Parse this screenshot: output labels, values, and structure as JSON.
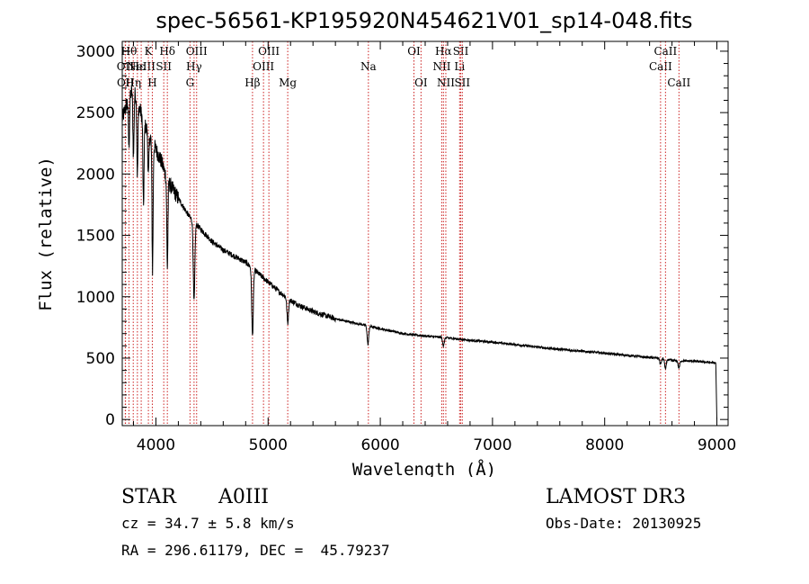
{
  "chart_data": {
    "type": "line",
    "title": "spec-56561-KP195920N454621V01_sp14-048.fits",
    "xlabel": "Wavelength (Å)",
    "ylabel": "Flux (relative)",
    "xlim": [
      3700,
      9100
    ],
    "ylim": [
      -50,
      3080
    ],
    "xticks": [
      4000,
      5000,
      6000,
      7000,
      8000,
      9000
    ],
    "xtick_labels": [
      "4000",
      "5000",
      "6000",
      "7000",
      "8000",
      "9000"
    ],
    "yticks": [
      0,
      500,
      1000,
      1500,
      2000,
      2500,
      3000
    ],
    "ytick_labels": [
      "0",
      "500",
      "1000",
      "1500",
      "2000",
      "2500",
      "3000"
    ],
    "continuum": {
      "x": [
        3700,
        3750,
        3800,
        3850,
        3900,
        3950,
        4000,
        4050,
        4100,
        4200,
        4300,
        4400,
        4500,
        4600,
        4700,
        4800,
        4900,
        5000,
        5100,
        5200,
        5300,
        5400,
        5500,
        5600,
        5800,
        6000,
        6200,
        6400,
        6600,
        6800,
        7000,
        7500,
        8000,
        8400,
        8500,
        8600,
        8800,
        8990,
        9000
      ],
      "y": [
        2450,
        2600,
        2700,
        2550,
        2400,
        2300,
        2200,
        2100,
        1950,
        1800,
        1650,
        1550,
        1450,
        1380,
        1330,
        1280,
        1200,
        1120,
        1040,
        970,
        920,
        880,
        850,
        820,
        780,
        740,
        700,
        680,
        665,
        645,
        630,
        580,
        540,
        505,
        500,
        480,
        475,
        460,
        0
      ]
    },
    "absorption_lines": [
      {
        "x": 3760,
        "depth": 400
      },
      {
        "x": 3800,
        "depth": 550
      },
      {
        "x": 3835,
        "depth": 600
      },
      {
        "x": 3889,
        "depth": 700
      },
      {
        "x": 3933,
        "depth": 350
      },
      {
        "x": 3970,
        "depth": 1050
      },
      {
        "x": 4102,
        "depth": 700
      },
      {
        "x": 4340,
        "depth": 650
      },
      {
        "x": 4861,
        "depth": 550
      },
      {
        "x": 5175,
        "depth": 200
      },
      {
        "x": 5890,
        "depth": 150
      },
      {
        "x": 6563,
        "depth": 70
      },
      {
        "x": 8498,
        "depth": 50
      },
      {
        "x": 8542,
        "depth": 80
      },
      {
        "x": 8662,
        "depth": 60
      }
    ],
    "line_markers": [
      {
        "x": 3727,
        "label": "OII",
        "row": 2
      },
      {
        "x": 3729,
        "label": "OII",
        "row": 3
      },
      {
        "x": 3760,
        "label": "Hθ",
        "row": 1
      },
      {
        "x": 3798,
        "label": "Hη",
        "row": 3
      },
      {
        "x": 3835,
        "label": "Hε",
        "row": 2
      },
      {
        "x": 3869,
        "label": "NeIII",
        "row": 2
      },
      {
        "x": 3933,
        "label": "K",
        "row": 1
      },
      {
        "x": 3968,
        "label": "H",
        "row": 3
      },
      {
        "x": 4070,
        "label": "SII",
        "row": 2
      },
      {
        "x": 4102,
        "label": "Hδ",
        "row": 1
      },
      {
        "x": 4304,
        "label": "G",
        "row": 3
      },
      {
        "x": 4340,
        "label": "Hγ",
        "row": 2
      },
      {
        "x": 4363,
        "label": "OIII",
        "row": 1
      },
      {
        "x": 4861,
        "label": "Hβ",
        "row": 3
      },
      {
        "x": 4959,
        "label": "OIII",
        "row": 2
      },
      {
        "x": 5007,
        "label": "OIII",
        "row": 1
      },
      {
        "x": 5175,
        "label": "Mg",
        "row": 3
      },
      {
        "x": 5894,
        "label": "Na",
        "row": 2
      },
      {
        "x": 6300,
        "label": "OI",
        "row": 1
      },
      {
        "x": 6363,
        "label": "OI",
        "row": 3
      },
      {
        "x": 6548,
        "label": "NII",
        "row": 2
      },
      {
        "x": 6563,
        "label": "Hα",
        "row": 1
      },
      {
        "x": 6584,
        "label": "NII",
        "row": 3
      },
      {
        "x": 6707,
        "label": "Li",
        "row": 2
      },
      {
        "x": 6717,
        "label": "SII",
        "row": 1
      },
      {
        "x": 6731,
        "label": "SII",
        "row": 3
      },
      {
        "x": 8498,
        "label": "CaII",
        "row": 2
      },
      {
        "x": 8542,
        "label": "CaII",
        "row": 1
      },
      {
        "x": 8662,
        "label": "CaII",
        "row": 3
      }
    ]
  },
  "info": {
    "object_class": "STAR",
    "subclass": "A0III",
    "survey": "LAMOST DR3",
    "redshift": "cz = 34.7 ± 5.8 km/s",
    "obs_date": "Obs-Date: 20130925",
    "coords": "RA = 296.61179, DEC =  45.79237"
  },
  "colors": {
    "marker": "#cc2222",
    "spectrum": "#000000",
    "axis": "#000000"
  }
}
